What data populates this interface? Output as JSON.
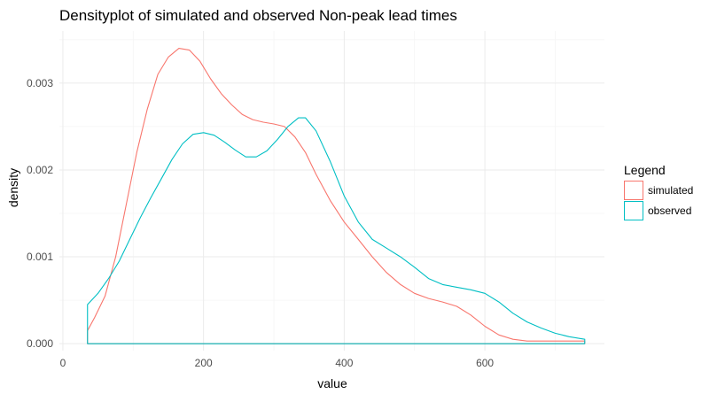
{
  "chart_data": {
    "type": "area",
    "title": "Densityplot of simulated and observed Non-peak lead times",
    "xlabel": "value",
    "ylabel": "density",
    "xlim": [
      -5,
      770
    ],
    "ylim": [
      -8e-05,
      0.0036
    ],
    "x_ticks": [
      0,
      200,
      400,
      600
    ],
    "x_tick_labels": [
      "0",
      "200",
      "400",
      "600"
    ],
    "x_minor_ticks": [
      100,
      300,
      500,
      700
    ],
    "y_ticks": [
      0,
      0.001,
      0.002,
      0.003
    ],
    "y_tick_labels": [
      "0.000",
      "0.001",
      "0.002",
      "0.003"
    ],
    "y_minor_ticks": [
      0.0005,
      0.0015,
      0.0025,
      0.0035
    ],
    "grid": true,
    "legend": {
      "title": "Legend",
      "position": "right"
    },
    "series": [
      {
        "name": "simulated",
        "color": "#F8766D",
        "x": [
          35,
          45,
          60,
          75,
          90,
          105,
          120,
          135,
          150,
          165,
          180,
          195,
          210,
          225,
          240,
          255,
          270,
          285,
          300,
          315,
          330,
          345,
          360,
          380,
          400,
          420,
          440,
          460,
          480,
          500,
          520,
          540,
          560,
          580,
          600,
          620,
          640,
          660,
          680,
          700,
          720,
          742
        ],
        "y": [
          0.00015,
          0.0003,
          0.00055,
          0.001,
          0.0016,
          0.0022,
          0.0027,
          0.0031,
          0.0033,
          0.0034,
          0.00338,
          0.00325,
          0.00305,
          0.00288,
          0.00275,
          0.00264,
          0.00258,
          0.00255,
          0.00253,
          0.0025,
          0.00238,
          0.0022,
          0.00195,
          0.00165,
          0.0014,
          0.0012,
          0.001,
          0.00082,
          0.00068,
          0.00058,
          0.00052,
          0.00048,
          0.00043,
          0.00033,
          0.0002,
          0.0001,
          5e-05,
          3e-05,
          3e-05,
          3e-05,
          3e-05,
          3e-05
        ]
      },
      {
        "name": "observed",
        "color": "#00BFC4",
        "x": [
          35,
          50,
          65,
          80,
          95,
          110,
          125,
          140,
          155,
          170,
          185,
          200,
          215,
          230,
          245,
          260,
          275,
          290,
          305,
          320,
          335,
          345,
          360,
          380,
          400,
          420,
          440,
          460,
          480,
          500,
          520,
          540,
          560,
          580,
          600,
          620,
          640,
          660,
          680,
          700,
          720,
          742
        ],
        "y": [
          0.00045,
          0.00058,
          0.00075,
          0.00095,
          0.0012,
          0.00145,
          0.00168,
          0.0019,
          0.00212,
          0.0023,
          0.00241,
          0.00243,
          0.0024,
          0.00232,
          0.00223,
          0.00215,
          0.00215,
          0.00222,
          0.00235,
          0.0025,
          0.0026,
          0.0026,
          0.00245,
          0.0021,
          0.0017,
          0.0014,
          0.0012,
          0.0011,
          0.001,
          0.00088,
          0.00075,
          0.00068,
          0.00065,
          0.00062,
          0.00058,
          0.00048,
          0.00035,
          0.00025,
          0.00018,
          0.00012,
          8e-05,
          5e-05
        ]
      }
    ]
  }
}
